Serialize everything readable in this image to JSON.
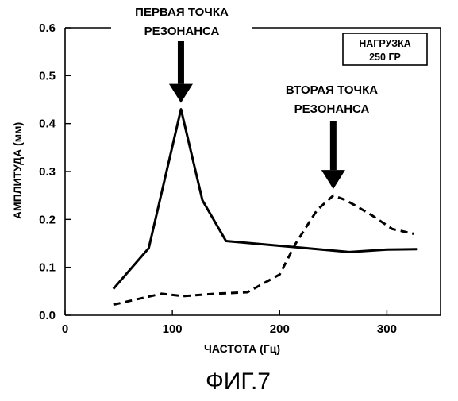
{
  "chart_data": {
    "type": "line",
    "xlabel": "ЧАСТОТА (Гц)",
    "ylabel": "АМПЛИТУДА (мм)",
    "xlim": [
      0,
      350
    ],
    "ylim": [
      0,
      0.6
    ],
    "x_ticks": [
      0,
      100,
      200,
      300
    ],
    "y_ticks": [
      0.0,
      0.1,
      0.2,
      0.3,
      0.4,
      0.5,
      0.6
    ],
    "x_tick_labels": [
      "0",
      "100",
      "200",
      "300"
    ],
    "y_tick_labels": [
      "0.0",
      "0.1",
      "0.2",
      "0.3",
      "0.4",
      "0.5",
      "0.6"
    ],
    "grid": false,
    "series": [
      {
        "style": "solid",
        "color": "#000000",
        "x": [
          45,
          78,
          108,
          128,
          150,
          175,
          200,
          225,
          265,
          300,
          328
        ],
        "y": [
          0.055,
          0.14,
          0.43,
          0.24,
          0.155,
          0.15,
          0.145,
          0.14,
          0.132,
          0.137,
          0.138
        ]
      },
      {
        "style": "dashed",
        "color": "#000000",
        "x": [
          45,
          70,
          90,
          110,
          140,
          170,
          200,
          215,
          235,
          250,
          262,
          285,
          305,
          325
        ],
        "y": [
          0.022,
          0.035,
          0.045,
          0.04,
          0.045,
          0.048,
          0.085,
          0.15,
          0.22,
          0.25,
          0.24,
          0.21,
          0.18,
          0.17
        ]
      }
    ],
    "annotations": [
      {
        "id": "first-resonance",
        "lines": [
          "ПЕРВАЯ ТОЧКА",
          "РЕЗОНАНСА"
        ],
        "arrow_to": [
          108,
          0.43
        ]
      },
      {
        "id": "second-resonance",
        "lines": [
          "ВТОРАЯ ТОЧКА",
          "РЕЗОНАНСА"
        ],
        "arrow_to": [
          250,
          0.25
        ]
      }
    ],
    "legend_box": {
      "lines": [
        "НАГРУЗКА",
        "250 ГР"
      ],
      "placement": "top-right"
    }
  },
  "caption": "ФИГ.7"
}
